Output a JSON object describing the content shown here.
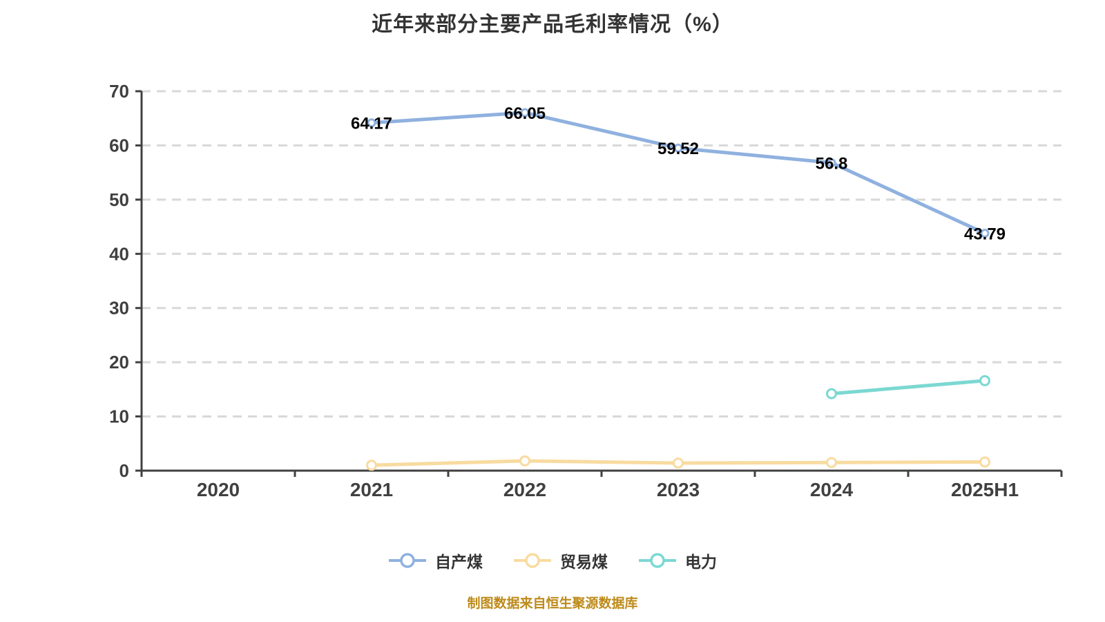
{
  "title": "近年来部分主要产品毛利率情况（%）",
  "footer": "制图数据来自恒生聚源数据库",
  "colors": {
    "axis": "#404040",
    "tick_label": "#404040",
    "grid": "#D8D8D8",
    "data_label": "#000000",
    "title": "#333333",
    "footer": "#BD8A1A",
    "point_fill": "#FFFFFF",
    "background": "#FFFFFF"
  },
  "chart_data": {
    "type": "line",
    "title": "近年来部分主要产品毛利率情况（%）",
    "categories": [
      "2020",
      "2021",
      "2022",
      "2023",
      "2024",
      "2025H1"
    ],
    "series": [
      {
        "name": "自产煤",
        "color": "#8FB1DF",
        "values": [
          null,
          64.17,
          66.05,
          59.52,
          56.8,
          43.79
        ],
        "labels": [
          null,
          "64.17",
          "66.05",
          "59.52",
          "56.8",
          "43.79"
        ],
        "show_labels": true
      },
      {
        "name": "贸易煤",
        "color": "#F8DBA0",
        "values": [
          null,
          1.0,
          1.8,
          1.4,
          1.5,
          1.6
        ],
        "show_labels": false
      },
      {
        "name": "电力",
        "color": "#7BD8D2",
        "values": [
          null,
          null,
          null,
          null,
          14.2,
          16.6
        ],
        "show_labels": false
      }
    ],
    "xlabel": "",
    "ylabel": "",
    "ylim": [
      0,
      70
    ],
    "yticks": [
      0,
      10,
      20,
      30,
      40,
      50,
      60,
      70
    ],
    "grid": "horizontal-dashed",
    "legend_position": "bottom"
  }
}
